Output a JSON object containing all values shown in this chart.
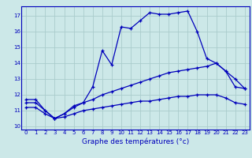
{
  "xlabel": "Graphe des températures (°c)",
  "bg_color": "#cce8e8",
  "grid_color": "#aacccc",
  "line_color": "#0000bb",
  "spine_color": "#0000bb",
  "xlim": [
    -0.5,
    23.5
  ],
  "ylim": [
    9.8,
    17.6
  ],
  "xticks": [
    0,
    1,
    2,
    3,
    4,
    5,
    6,
    7,
    8,
    9,
    10,
    11,
    12,
    13,
    14,
    15,
    16,
    17,
    18,
    19,
    20,
    21,
    22,
    23
  ],
  "yticks": [
    10,
    11,
    12,
    13,
    14,
    15,
    16,
    17
  ],
  "curve1_x": [
    0,
    1,
    2,
    3,
    4,
    5,
    6,
    7,
    8,
    9,
    10,
    11,
    12,
    13,
    14,
    15,
    16,
    17,
    18,
    19,
    20,
    21,
    22,
    23
  ],
  "curve1_y": [
    11.7,
    11.7,
    11.0,
    10.5,
    10.8,
    11.3,
    11.5,
    12.5,
    14.8,
    13.9,
    16.3,
    16.2,
    16.7,
    17.2,
    17.1,
    17.1,
    17.2,
    17.3,
    16.0,
    14.3,
    14.0,
    13.5,
    12.5,
    12.4
  ],
  "curve2_x": [
    0,
    1,
    2,
    3,
    4,
    5,
    6,
    7,
    8,
    9,
    10,
    11,
    12,
    13,
    14,
    15,
    16,
    17,
    18,
    19,
    20,
    21,
    22,
    23
  ],
  "curve2_y": [
    11.5,
    11.5,
    11.0,
    10.5,
    10.8,
    11.2,
    11.5,
    11.7,
    12.0,
    12.2,
    12.4,
    12.6,
    12.8,
    13.0,
    13.2,
    13.4,
    13.5,
    13.6,
    13.7,
    13.8,
    14.0,
    13.5,
    13.0,
    12.4
  ],
  "curve3_x": [
    0,
    1,
    2,
    3,
    4,
    5,
    6,
    7,
    8,
    9,
    10,
    11,
    12,
    13,
    14,
    15,
    16,
    17,
    18,
    19,
    20,
    21,
    22,
    23
  ],
  "curve3_y": [
    11.2,
    11.2,
    10.8,
    10.5,
    10.6,
    10.8,
    11.0,
    11.1,
    11.2,
    11.3,
    11.4,
    11.5,
    11.6,
    11.6,
    11.7,
    11.8,
    11.9,
    11.9,
    12.0,
    12.0,
    12.0,
    11.8,
    11.5,
    11.4
  ],
  "xlabel_fontsize": 6.5,
  "tick_fontsize": 5.0
}
